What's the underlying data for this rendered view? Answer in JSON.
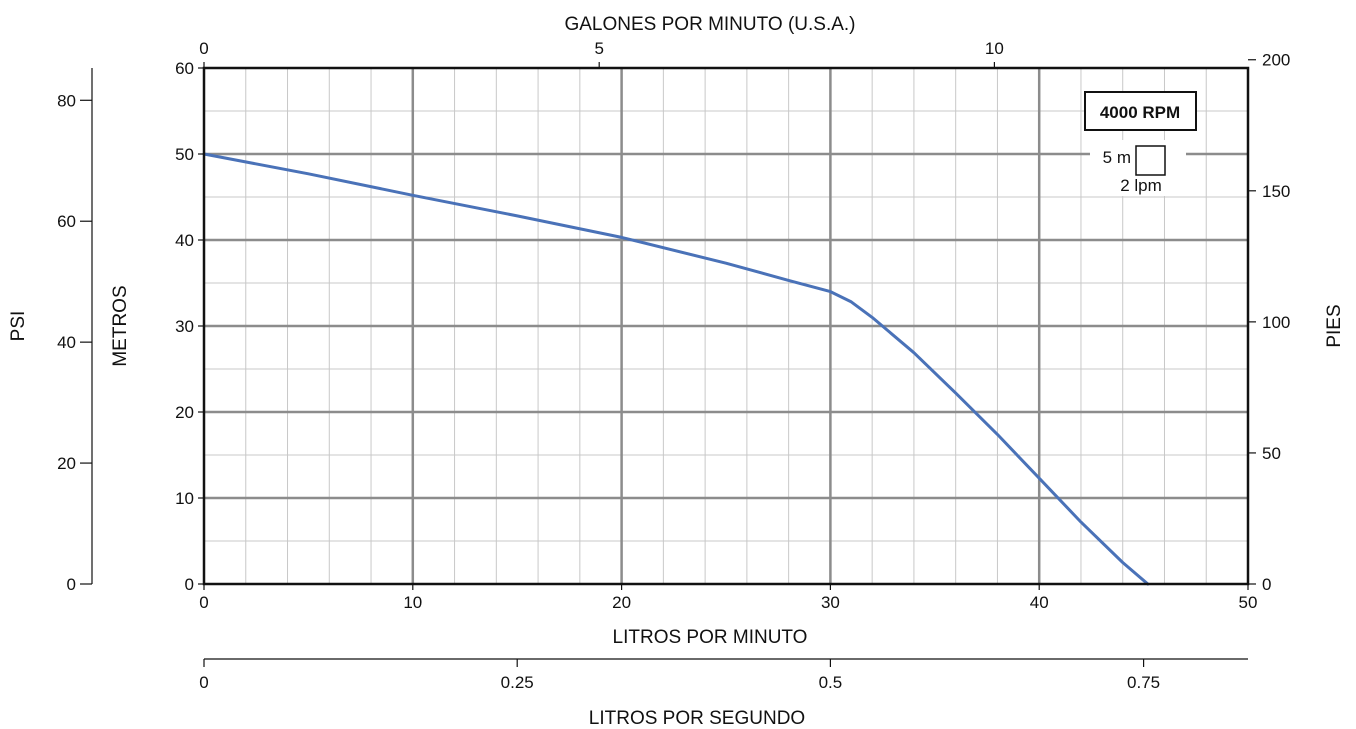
{
  "chart_data": {
    "type": "line",
    "title": "",
    "rpm_label": "4000 RPM",
    "grid_legend": {
      "vertical": "5 m",
      "horizontal": "2 lpm"
    },
    "xlabel": "LITROS POR MINUTO",
    "ylabel": "METROS",
    "xlim": [
      0,
      50
    ],
    "ylim": [
      0,
      60
    ],
    "x_ticks": [
      "0",
      "10",
      "20",
      "30",
      "40",
      "50"
    ],
    "y_ticks": [
      "0",
      "10",
      "20",
      "30",
      "40",
      "50",
      "60"
    ],
    "top_axis": {
      "label": "GALONES POR MINUTO (U.S.A.)",
      "ticks": [
        "0",
        "5",
        "10"
      ]
    },
    "right_axis": {
      "label": "PIES",
      "ticks": [
        "0",
        "50",
        "100",
        "150",
        "200"
      ]
    },
    "psi_axis": {
      "label": "PSI",
      "ticks": [
        "0",
        "20",
        "40",
        "60",
        "80"
      ]
    },
    "lps_axis": {
      "label": "LITROS POR SEGUNDO",
      "ticks": [
        "0",
        "0.25",
        "0.5",
        "0.75"
      ]
    },
    "series": [
      {
        "color": "#4a72b8",
        "x": [
          0,
          5,
          10,
          15,
          20,
          25,
          28,
          30,
          31,
          32,
          34,
          36,
          38,
          40,
          42,
          44,
          45.2
        ],
        "y": [
          50,
          47.7,
          45.2,
          42.8,
          40.3,
          37.3,
          35.3,
          34,
          32.8,
          31,
          26.9,
          22.2,
          17.4,
          12.3,
          7.2,
          2.5,
          0
        ]
      }
    ]
  }
}
